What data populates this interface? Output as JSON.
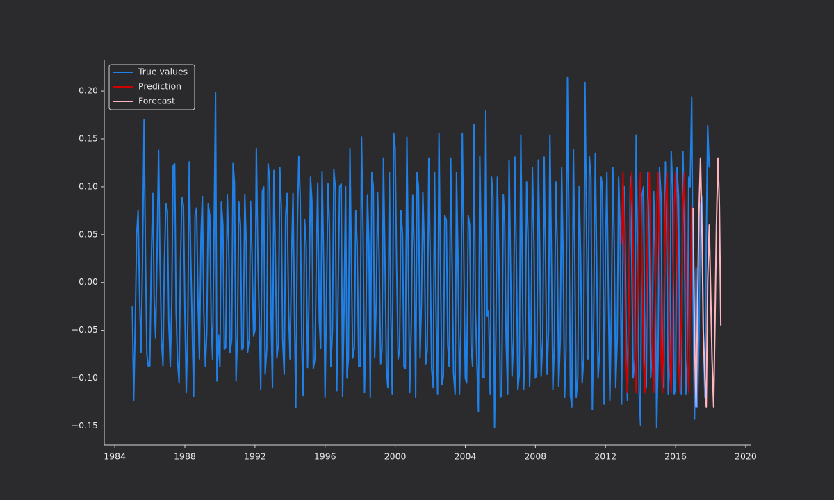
{
  "chart_data": {
    "type": "line",
    "xlim": [
      1983.4,
      2020.28
    ],
    "xticks": [
      1984,
      1988,
      1992,
      1996,
      2000,
      2004,
      2008,
      2012,
      2016,
      2020
    ],
    "ylim": [
      -0.17,
      0.232
    ],
    "yticks": [
      {
        "value": -0.15,
        "label": "−0.15"
      },
      {
        "value": -0.1,
        "label": "−0.10"
      },
      {
        "value": -0.05,
        "label": "−0.05"
      },
      {
        "value": 0,
        "label": "0.00"
      },
      {
        "value": 0.05,
        "label": "0.05"
      },
      {
        "value": 0.1,
        "label": "0.10"
      },
      {
        "value": 0.15,
        "label": "0.15"
      },
      {
        "value": 0.2,
        "label": "0.20"
      }
    ],
    "legend": "upper left",
    "series": [
      {
        "name": "True values",
        "color": "#1f80e8",
        "x": [
          1985,
          1985.08,
          1985.17,
          1985.25,
          1985.33,
          1985.42,
          1985.5,
          1985.58,
          1985.67,
          1985.75,
          1985.83,
          1985.92,
          1986,
          1986.08,
          1986.17,
          1986.25,
          1986.33,
          1986.42,
          1986.5,
          1986.58,
          1986.67,
          1986.75,
          1986.83,
          1986.92,
          1987,
          1987.08,
          1987.17,
          1987.25,
          1987.33,
          1987.42,
          1987.5,
          1987.58,
          1987.67,
          1987.75,
          1987.83,
          1987.92,
          1988,
          1988.08,
          1988.17,
          1988.25,
          1988.33,
          1988.42,
          1988.5,
          1988.58,
          1988.67,
          1988.75,
          1988.83,
          1988.92,
          1989,
          1989.08,
          1989.17,
          1989.25,
          1989.33,
          1989.42,
          1989.5,
          1989.58,
          1989.67,
          1989.75,
          1989.83,
          1989.92,
          1990,
          1990.08,
          1990.17,
          1990.25,
          1990.33,
          1990.42,
          1990.5,
          1990.58,
          1990.67,
          1990.75,
          1990.83,
          1990.92,
          1991,
          1991.08,
          1991.17,
          1991.25,
          1991.33,
          1991.42,
          1991.5,
          1991.58,
          1991.67,
          1991.75,
          1991.83,
          1991.92,
          1992,
          1992.08,
          1992.17,
          1992.25,
          1992.33,
          1992.42,
          1992.5,
          1992.58,
          1992.67,
          1992.75,
          1992.83,
          1992.92,
          1993,
          1993.08,
          1993.17,
          1993.25,
          1993.33,
          1993.42,
          1993.5,
          1993.58,
          1993.67,
          1993.75,
          1993.83,
          1993.92,
          1994,
          1994.08,
          1994.17,
          1994.25,
          1994.33,
          1994.42,
          1994.5,
          1994.58,
          1994.67,
          1994.75,
          1994.83,
          1994.92,
          1995,
          1995.08,
          1995.17,
          1995.25,
          1995.33,
          1995.42,
          1995.5,
          1995.58,
          1995.67,
          1995.75,
          1995.83,
          1995.92,
          1996,
          1996.08,
          1996.17,
          1996.25,
          1996.33,
          1996.42,
          1996.5,
          1996.58,
          1996.67,
          1996.75,
          1996.83,
          1996.92,
          1997,
          1997.08,
          1997.17,
          1997.25,
          1997.33,
          1997.42,
          1997.5,
          1997.58,
          1997.67,
          1997.75,
          1997.83,
          1997.92,
          1998,
          1998.08,
          1998.17,
          1998.25,
          1998.33,
          1998.42,
          1998.5,
          1998.58,
          1998.67,
          1998.75,
          1998.83,
          1998.92,
          1999,
          1999.08,
          1999.17,
          1999.25,
          1999.33,
          1999.42,
          1999.5,
          1999.58,
          1999.67,
          1999.75,
          1999.83,
          1999.92,
          2000,
          2000.08,
          2000.17,
          2000.25,
          2000.33,
          2000.42,
          2000.5,
          2000.58,
          2000.67,
          2000.75,
          2000.83,
          2000.92,
          2001,
          2001.08,
          2001.17,
          2001.25,
          2001.33,
          2001.42,
          2001.5,
          2001.58,
          2001.67,
          2001.75,
          2001.83,
          2001.92,
          2002,
          2002.08,
          2002.17,
          2002.25,
          2002.33,
          2002.42,
          2002.5,
          2002.58,
          2002.67,
          2002.75,
          2002.83,
          2002.92,
          2003,
          2003.08,
          2003.17,
          2003.25,
          2003.33,
          2003.42,
          2003.5,
          2003.58,
          2003.67,
          2003.75,
          2003.83,
          2003.92,
          2004,
          2004.08,
          2004.17,
          2004.25,
          2004.33,
          2004.42,
          2004.5,
          2004.58,
          2004.67,
          2004.75,
          2004.83,
          2004.92,
          2005,
          2005.08,
          2005.17,
          2005.25,
          2005.33,
          2005.42,
          2005.5,
          2005.58,
          2005.67,
          2005.75,
          2005.83,
          2005.92,
          2006,
          2006.08,
          2006.17,
          2006.25,
          2006.33,
          2006.42,
          2006.5,
          2006.58,
          2006.67,
          2006.75,
          2006.83,
          2006.92,
          2007,
          2007.08,
          2007.17,
          2007.25,
          2007.33,
          2007.42,
          2007.5,
          2007.58,
          2007.67,
          2007.75,
          2007.83,
          2007.92,
          2008,
          2008.08,
          2008.17,
          2008.25,
          2008.33,
          2008.42,
          2008.5,
          2008.58,
          2008.67,
          2008.75,
          2008.83,
          2008.92,
          2009,
          2009.08,
          2009.17,
          2009.25,
          2009.33,
          2009.42,
          2009.5,
          2009.58,
          2009.67,
          2009.75,
          2009.83,
          2009.92,
          2010,
          2010.08,
          2010.17,
          2010.25,
          2010.33,
          2010.42,
          2010.5,
          2010.58,
          2010.67,
          2010.75,
          2010.83,
          2010.92,
          2011,
          2011.08,
          2011.17,
          2011.25,
          2011.33,
          2011.42,
          2011.5,
          2011.58,
          2011.67,
          2011.75,
          2011.83,
          2011.92,
          2012,
          2012.08,
          2012.17,
          2012.25,
          2012.33,
          2012.42,
          2012.5,
          2012.58,
          2012.67,
          2012.75,
          2012.83,
          2012.92,
          2013,
          2013.08,
          2013.17,
          2013.25,
          2013.33,
          2013.42,
          2013.5,
          2013.58,
          2013.67,
          2013.75,
          2013.83,
          2013.92,
          2014,
          2014.08,
          2014.17,
          2014.25,
          2014.33,
          2014.42,
          2014.5,
          2014.58,
          2014.67,
          2014.75,
          2014.83,
          2014.92,
          2015,
          2015.08,
          2015.17,
          2015.25,
          2015.33,
          2015.42,
          2015.5,
          2015.58,
          2015.67,
          2015.75,
          2015.83,
          2015.92,
          2016,
          2016.08,
          2016.17,
          2016.25,
          2016.33,
          2016.42,
          2016.5,
          2016.58,
          2016.67,
          2016.75,
          2016.83,
          2016.92,
          2017,
          2017.08,
          2017.17,
          2017.25,
          2017.33,
          2017.42,
          2017.5,
          2017.58,
          2017.67,
          2017.75,
          2017.83,
          2017.92
        ],
        "values": [
          -0.025,
          -0.123,
          -0.04,
          0.05,
          0.075,
          -0.02,
          -0.073,
          0.02,
          0.17,
          0.03,
          -0.075,
          -0.088,
          -0.087,
          0.02,
          0.093,
          -0.02,
          -0.058,
          0.04,
          0.138,
          0.02,
          -0.06,
          -0.087,
          0.02,
          0.082,
          0.075,
          -0.04,
          -0.088,
          -0.02,
          0.122,
          0.124,
          -0.03,
          -0.08,
          -0.105,
          0.02,
          0.089,
          0.08,
          -0.03,
          -0.115,
          -0.04,
          0.126,
          0.03,
          -0.05,
          -0.119,
          0.07,
          0.078,
          -0.02,
          -0.08,
          0.05,
          0.09,
          -0.03,
          -0.088,
          -0.052,
          0.082,
          0.07,
          -0.04,
          -0.08,
          0.06,
          0.198,
          -0.103,
          -0.055,
          -0.088,
          0.084,
          0.06,
          -0.07,
          -0.068,
          0.092,
          0.04,
          -0.073,
          -0.06,
          0.125,
          0.104,
          -0.103,
          -0.055,
          0.084,
          0.06,
          -0.07,
          -0.068,
          0.092,
          0.04,
          -0.073,
          -0.06,
          0.085,
          0.03,
          -0.056,
          -0.05,
          0.14,
          0.02,
          -0.04,
          -0.112,
          0.095,
          0.1,
          -0.096,
          -0.07,
          0.124,
          0.11,
          -0.04,
          -0.11,
          0.117,
          0.02,
          -0.079,
          -0.065,
          0.12,
          0.08,
          -0.06,
          -0.096,
          0.07,
          0.093,
          -0.03,
          -0.08,
          0.02,
          0.093,
          -0.03,
          -0.131,
          0.06,
          0.132,
          0.09,
          -0.065,
          -0.118,
          0.066,
          0.04,
          -0.089,
          -0.02,
          0.11,
          0.085,
          -0.09,
          -0.08,
          0.02,
          0.104,
          -0.04,
          -0.069,
          0.116,
          0.02,
          -0.12,
          -0.014,
          0.103,
          0.06,
          -0.088,
          -0.05,
          0.118,
          0.1,
          -0.113,
          -0.005,
          0.1,
          0.103,
          -0.119,
          -0.03,
          0.1,
          -0.1,
          -0.08,
          0.14,
          0.02,
          -0.079,
          -0.068,
          0.075,
          0.04,
          -0.088,
          -0.088,
          0.152,
          0.05,
          -0.115,
          -0.045,
          0.091,
          0.04,
          -0.12,
          0.115,
          0.1,
          -0.079,
          -0.02,
          0.094,
          0.03,
          -0.085,
          -0.07,
          0.13,
          0.02,
          -0.09,
          -0.11,
          0.115,
          -0.03,
          -0.117,
          0.156,
          0.14,
          0.02,
          -0.08,
          -0.07,
          0.075,
          0.05,
          -0.088,
          -0.09,
          0.152,
          0.02,
          -0.115,
          -0.045,
          0.091,
          0.04,
          -0.12,
          0.115,
          0.1,
          -0.079,
          -0.02,
          0.094,
          0.03,
          -0.085,
          -0.07,
          0.13,
          0.02,
          -0.09,
          -0.11,
          0.115,
          -0.03,
          -0.117,
          0.156,
          0.02,
          -0.107,
          -0.098,
          0.07,
          0.065,
          -0.065,
          -0.088,
          0.13,
          0.02,
          -0.095,
          -0.117,
          0.115,
          0.03,
          -0.117,
          -0.05,
          0.156,
          0.02,
          -0.1,
          -0.105,
          0.07,
          0.06,
          -0.065,
          -0.088,
          0.165,
          -0.028,
          -0.088,
          -0.135,
          0.132,
          0.02,
          -0.099,
          -0.1,
          0.179,
          -0.035,
          -0.03,
          -0.117,
          0.11,
          0.09,
          -0.152,
          -0.05,
          0.11,
          0.02,
          -0.12,
          -0.117,
          0.092,
          0.062,
          -0.06,
          -0.117,
          0.128,
          0.02,
          -0.098,
          -0.06,
          0.131,
          0.02,
          -0.112,
          -0.096,
          0.154,
          0.02,
          -0.112,
          -0.065,
          0.105,
          0.05,
          -0.109,
          -0.06,
          0.12,
          0.04,
          -0.1,
          -0.095,
          0.128,
          0.03,
          -0.098,
          -0.06,
          0.131,
          0.02,
          -0.096,
          -0.05,
          0.154,
          0.02,
          -0.112,
          -0.065,
          0.105,
          0.04,
          -0.109,
          -0.06,
          0.12,
          0.03,
          -0.12,
          -0.07,
          0.214,
          0.05,
          -0.118,
          -0.13,
          0.139,
          0.02,
          -0.12,
          -0.1,
          0.1,
          0.03,
          -0.105,
          -0.08,
          0.209,
          0.05,
          -0.08,
          0.132,
          0.11,
          -0.133,
          -0.03,
          0.135,
          0.02,
          -0.1,
          -0.07,
          0.11,
          0.1,
          -0.127,
          0.03,
          0.115,
          -0.02,
          -0.123,
          -0.035,
          0.12,
          0.04,
          -0.11,
          -0.06,
          0.11,
          0.06,
          -0.127,
          0.04,
          0.1,
          -0.035,
          -0.123,
          -0.03,
          0.11,
          0.02,
          -0.1,
          -0.08,
          0.154,
          0.03,
          -0.115,
          -0.149,
          0.09,
          0.1,
          -0.09,
          -0.11,
          0.115,
          0.05,
          -0.1,
          -0.06,
          0.095,
          0.03,
          -0.152,
          -0.08,
          0.12,
          0.09,
          -0.1,
          -0.11,
          0.126,
          0.05,
          -0.117,
          -0.08,
          0.137,
          0.1,
          -0.117,
          -0.11,
          0.12,
          0.09,
          -0.1,
          -0.117,
          0.137,
          0.06,
          -0.117,
          -0.08,
          0.11,
          0.1,
          0.194,
          -0.02,
          -0.143,
          0.015,
          -0.13,
          -0.06,
          0.08,
          0.09,
          -0.05,
          -0.12,
          0.04,
          0.164,
          0.12
        ]
      },
      {
        "name": "Prediction",
        "color": "#d00000",
        "x": [
          2012.92,
          2013,
          2013.08,
          2013.17,
          2013.25,
          2013.33,
          2013.42,
          2013.5,
          2013.58,
          2013.67,
          2013.75,
          2013.83,
          2013.92,
          2014,
          2014.08,
          2014.17,
          2014.25,
          2014.33,
          2014.42,
          2014.5,
          2014.58,
          2014.67,
          2014.75,
          2014.83,
          2014.92,
          2015,
          2015.08,
          2015.17,
          2015.25,
          2015.33,
          2015.42,
          2015.5,
          2015.58,
          2015.67,
          2015.75,
          2015.83,
          2015.92,
          2016,
          2016.08,
          2016.17,
          2016.25,
          2016.33,
          2016.42,
          2016.5,
          2016.58,
          2016.67,
          2016.75,
          2016.83,
          2016.92
        ],
        "values": [
          0.04,
          0.115,
          0.03,
          -0.08,
          -0.115,
          -0.03,
          0.08,
          0.115,
          0.03,
          -0.08,
          -0.115,
          -0.03,
          0.08,
          0.115,
          0.03,
          -0.08,
          -0.115,
          -0.03,
          0.08,
          0.115,
          0.03,
          -0.08,
          -0.115,
          -0.03,
          0.08,
          0.115,
          0.03,
          -0.08,
          -0.115,
          -0.03,
          0.08,
          0.115,
          0.03,
          -0.08,
          -0.115,
          -0.03,
          0.08,
          0.115,
          0.03,
          -0.08,
          -0.115,
          -0.03,
          0.08,
          0.115,
          0.03,
          -0.08,
          -0.115,
          -0.03,
          0.08
        ]
      },
      {
        "name": "Forecast",
        "color": "#ffb6c1",
        "x": [
          2017,
          2017.08,
          2017.17,
          2017.25,
          2017.33,
          2017.42,
          2017.5,
          2017.58,
          2017.67,
          2017.75,
          2017.83,
          2017.92,
          2018,
          2018.08,
          2018.17,
          2018.25,
          2018.33,
          2018.42,
          2018.5,
          2018.58
        ],
        "values": [
          0.078,
          -0.06,
          -0.13,
          -0.03,
          0.07,
          0.13,
          0.06,
          -0.05,
          -0.1,
          -0.13,
          0,
          0.06,
          -0.01,
          -0.08,
          -0.13,
          -0.04,
          0.06,
          0.13,
          0.08,
          -0.045
        ]
      }
    ]
  }
}
